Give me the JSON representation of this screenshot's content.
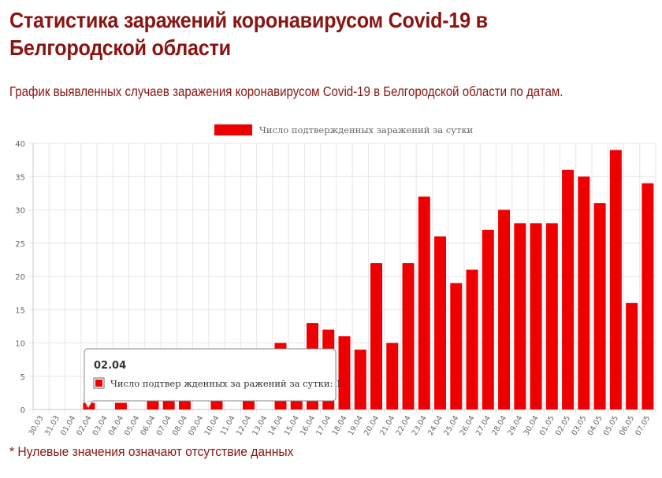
{
  "page": {
    "title": "Статистика заражений коронавирусом Covid-19 в Белгородской области",
    "subtitle": "График выявленных случаев заражения коронавирусом Covid-19 в Белгородской области по датам.",
    "footnote": "* Нулевые значения означают отсутствие данных"
  },
  "colors": {
    "bar": "#ee0000",
    "heading": "#8a1412",
    "grid": "#e6e6e6"
  },
  "tooltip": {
    "title": "02.04",
    "label": "Число подтвер жденных за ражений за сутки: 1"
  },
  "chart_data": {
    "type": "bar",
    "categories": [
      "30.03",
      "31.03",
      "01.04",
      "02.04",
      "03.04",
      "04.04",
      "05.04",
      "06.04",
      "07.04",
      "08.04",
      "09.04",
      "10.04",
      "11.04",
      "12.04",
      "13.04",
      "14.04",
      "15.04",
      "16.04",
      "17.04",
      "18.04",
      "19.04",
      "20.04",
      "21.04",
      "22.04",
      "23.04",
      "24.04",
      "25.04",
      "26.04",
      "27.04",
      "28.04",
      "29.04",
      "30.04",
      "01.05",
      "02.05",
      "03.05",
      "04.05",
      "05.05",
      "06.05",
      "07.05"
    ],
    "series": [
      {
        "name": "Число подтвержденных заражений за сутки",
        "values": [
          0,
          0,
          0,
          1,
          0,
          1,
          0,
          3,
          3,
          3,
          0,
          3,
          0,
          3,
          0,
          10,
          8,
          13,
          12,
          11,
          9,
          22,
          10,
          22,
          32,
          26,
          19,
          21,
          27,
          30,
          28,
          28,
          28,
          36,
          35,
          31,
          39,
          16,
          34
        ]
      }
    ],
    "ylim": [
      0,
      40
    ],
    "yticks": [
      0,
      5,
      10,
      15,
      20,
      25,
      30,
      35,
      40
    ],
    "grid": true,
    "legend": "top"
  }
}
